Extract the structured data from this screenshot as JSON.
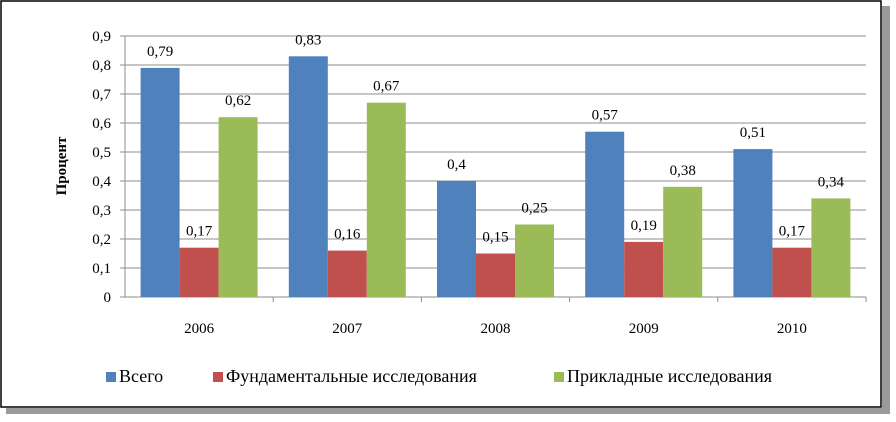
{
  "chart_data": {
    "type": "bar",
    "title": "",
    "xlabel": "",
    "ylabel": "Процент",
    "ylim": [
      0,
      0.9
    ],
    "yticks": [
      "0",
      "0,1",
      "0,2",
      "0,3",
      "0,4",
      "0,5",
      "0,6",
      "0,7",
      "0,8",
      "0,9"
    ],
    "grid": true,
    "legend_position": "bottom",
    "categories": [
      "2006",
      "2007",
      "2008",
      "2009",
      "2010"
    ],
    "series": [
      {
        "name": "Всего",
        "color": "#4F81BD",
        "values": [
          0.79,
          0.83,
          0.4,
          0.57,
          0.51
        ],
        "labels": [
          "0,79",
          "0,83",
          "0,4",
          "0,57",
          "0,51"
        ]
      },
      {
        "name": "Фундаментальные исследования",
        "color": "#C0504D",
        "values": [
          0.17,
          0.16,
          0.15,
          0.19,
          0.17
        ],
        "labels": [
          "0,17",
          "0,16",
          "0,15",
          "0,19",
          "0,17"
        ]
      },
      {
        "name": "Прикладные исследования",
        "color": "#9BBB59",
        "values": [
          0.62,
          0.67,
          0.25,
          0.38,
          0.34
        ],
        "labels": [
          "0,62",
          "0,67",
          "0,25",
          "0,38",
          "0,34"
        ]
      }
    ]
  }
}
